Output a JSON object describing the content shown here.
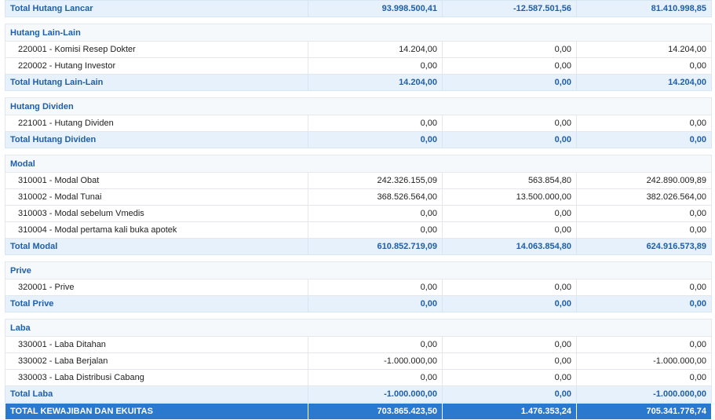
{
  "top_total": {
    "label": "Total Hutang Lancar",
    "values": [
      "93.998.500,41",
      "-12.587.501,56",
      "81.410.998,85"
    ]
  },
  "sections": [
    {
      "title": "Hutang Lain-Lain",
      "rows": [
        {
          "label": "220001 - Komisi Resep Dokter",
          "values": [
            "14.204,00",
            "0,00",
            "14.204,00"
          ]
        },
        {
          "label": "220002 - Hutang Investor",
          "values": [
            "0,00",
            "0,00",
            "0,00"
          ]
        }
      ],
      "total": {
        "label": "Total Hutang Lain-Lain",
        "values": [
          "14.204,00",
          "0,00",
          "14.204,00"
        ]
      }
    },
    {
      "title": "Hutang Dividen",
      "rows": [
        {
          "label": "221001 - Hutang Dividen",
          "values": [
            "0,00",
            "0,00",
            "0,00"
          ]
        }
      ],
      "total": {
        "label": "Total Hutang Dividen",
        "values": [
          "0,00",
          "0,00",
          "0,00"
        ]
      }
    },
    {
      "title": "Modal",
      "rows": [
        {
          "label": "310001 - Modal Obat",
          "values": [
            "242.326.155,09",
            "563.854,80",
            "242.890.009,89"
          ]
        },
        {
          "label": "310002 - Modal Tunai",
          "values": [
            "368.526.564,00",
            "13.500.000,00",
            "382.026.564,00"
          ]
        },
        {
          "label": "310003 - Modal sebelum Vmedis",
          "values": [
            "0,00",
            "0,00",
            "0,00"
          ]
        },
        {
          "label": "310004 - Modal pertama kali buka apotek",
          "values": [
            "0,00",
            "0,00",
            "0,00"
          ]
        }
      ],
      "total": {
        "label": "Total Modal",
        "values": [
          "610.852.719,09",
          "14.063.854,80",
          "624.916.573,89"
        ]
      }
    },
    {
      "title": "Prive",
      "rows": [
        {
          "label": "320001 - Prive",
          "values": [
            "0,00",
            "0,00",
            "0,00"
          ]
        }
      ],
      "total": {
        "label": "Total Prive",
        "values": [
          "0,00",
          "0,00",
          "0,00"
        ]
      }
    },
    {
      "title": "Laba",
      "rows": [
        {
          "label": "330001 - Laba Ditahan",
          "values": [
            "0,00",
            "0,00",
            "0,00"
          ]
        },
        {
          "label": "330002 - Laba Berjalan",
          "values": [
            "-1.000.000,00",
            "0,00",
            "-1.000.000,00"
          ]
        },
        {
          "label": "330003 - Laba Distribusi Cabang",
          "values": [
            "0,00",
            "0,00",
            "0,00"
          ]
        }
      ],
      "total": {
        "label": "Total Laba",
        "values": [
          "-1.000.000,00",
          "0,00",
          "-1.000.000,00"
        ]
      }
    }
  ],
  "grand_total": {
    "label": "TOTAL KEWAJIBAN DAN EKUITAS",
    "values": [
      "703.865.423,50",
      "1.476.353,24",
      "705.341.776,74"
    ]
  },
  "colors": {
    "accent": "#1f5fa8",
    "total_bg": "#e6f1fb",
    "grand_bg": "#2b78cf"
  }
}
